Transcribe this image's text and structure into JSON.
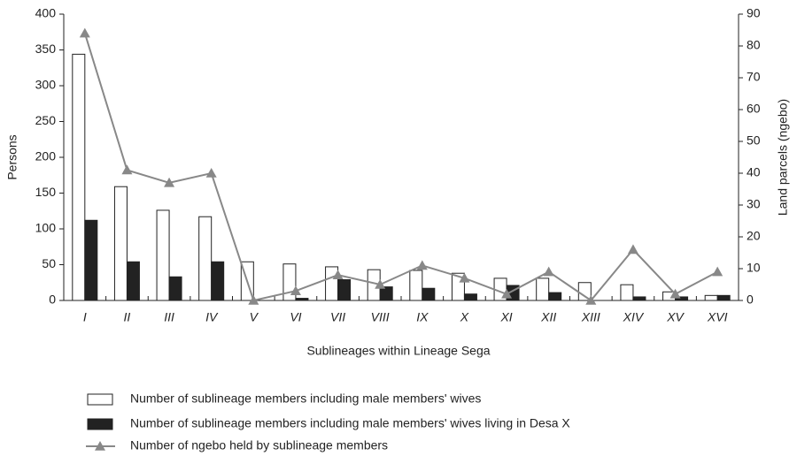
{
  "chart_data": {
    "type": "bar",
    "xlabel": "Sublineages within Lineage Sega",
    "ylabel": "Persons",
    "y2label": "Land parcels (ngebo)",
    "categories": [
      "I",
      "II",
      "III",
      "IV",
      "V",
      "VI",
      "VII",
      "VIII",
      "IX",
      "X",
      "XI",
      "XII",
      "XIII",
      "XIV",
      "XV",
      "XVI"
    ],
    "series": [
      {
        "name": "Number of sublineage members including male members' wives",
        "type": "bar",
        "color": "#ffffff",
        "values": [
          344,
          159,
          126,
          117,
          54,
          51,
          47,
          43,
          42,
          38,
          31,
          31,
          25,
          22,
          12,
          7
        ]
      },
      {
        "name": "Number of sublineage members including male members' wives living in Desa X",
        "type": "bar",
        "color": "#222222",
        "values": [
          112,
          54,
          33,
          54,
          0,
          3,
          29,
          19,
          17,
          9,
          21,
          11,
          0,
          5,
          5,
          7
        ]
      },
      {
        "name": "Number of ngebo held by sublineage members",
        "type": "line",
        "axis": "y2",
        "color": "#888888",
        "values": [
          84,
          41,
          37,
          40,
          0,
          3,
          8,
          5,
          11,
          7,
          2,
          9,
          0,
          16,
          2,
          9
        ]
      }
    ],
    "ylim": [
      0,
      400
    ],
    "yticks": [
      0,
      50,
      100,
      150,
      200,
      250,
      300,
      350,
      400
    ],
    "y2lim": [
      0,
      90
    ],
    "y2ticks": [
      0,
      10,
      20,
      30,
      40,
      50,
      60,
      70,
      80,
      90
    ]
  }
}
